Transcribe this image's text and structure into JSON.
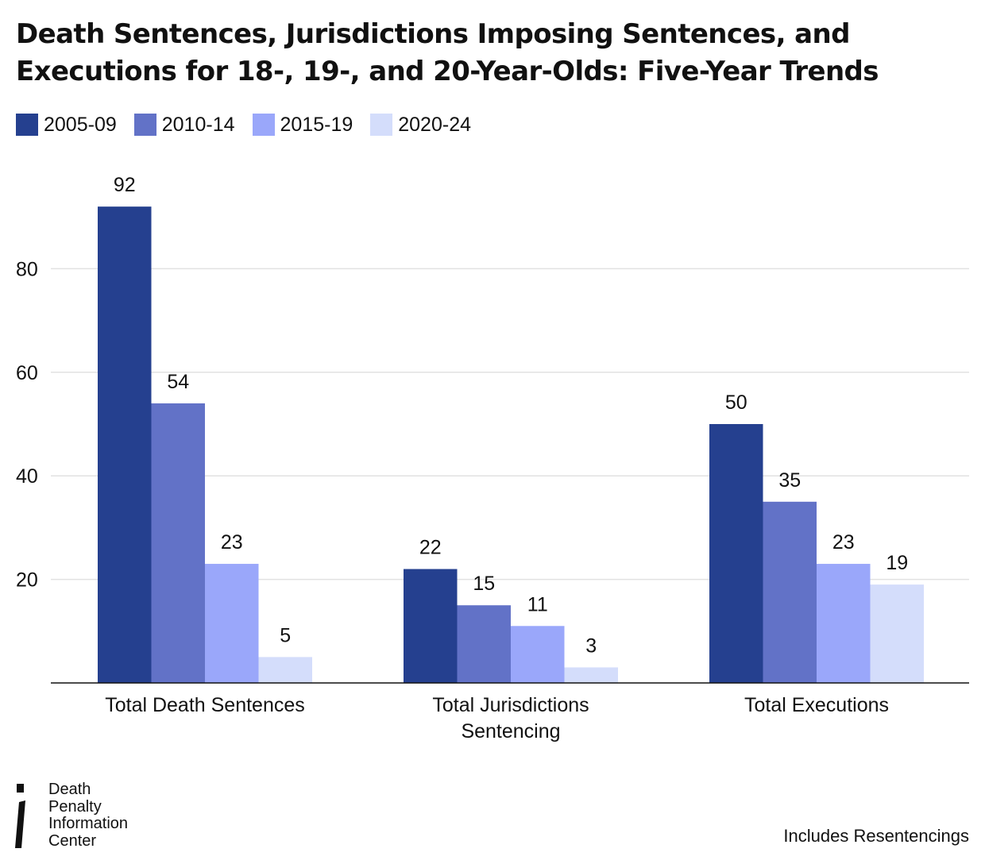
{
  "chart_data": {
    "type": "bar",
    "title_lines": [
      "Death Sentences, Jurisdictions Imposing Sentences, and",
      "Executions for 18-, 19-, and 20-Year-Olds: Five-Year Trends"
    ],
    "categories": [
      [
        "Total Death Sentences"
      ],
      [
        "Total Jurisdictions",
        "Sentencing"
      ],
      [
        "Total Executions"
      ]
    ],
    "series": [
      {
        "name": "2005-09",
        "color": "#25408f",
        "values": [
          92,
          22,
          50
        ]
      },
      {
        "name": "2010-14",
        "color": "#6272c7",
        "values": [
          54,
          15,
          35
        ]
      },
      {
        "name": "2015-19",
        "color": "#9aa7fa",
        "values": [
          23,
          11,
          23
        ]
      },
      {
        "name": "2020-24",
        "color": "#d4ddfb",
        "values": [
          5,
          3,
          19
        ]
      }
    ],
    "yticks": [
      20,
      40,
      60,
      80
    ],
    "ylim": [
      0,
      100
    ],
    "grid": true,
    "legend_position": "top-left",
    "xlabel": "",
    "ylabel": ""
  },
  "logo": {
    "lines": [
      "Death",
      "Penalty",
      "Information",
      "Center"
    ]
  },
  "footnote": "Includes Resentencings"
}
